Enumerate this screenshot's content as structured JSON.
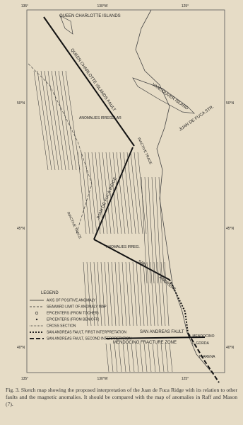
{
  "map": {
    "lon_labels_top": [
      "135°",
      "130°W",
      "125°"
    ],
    "lon_labels_bottom": [
      "135°",
      "130°W",
      "125°"
    ],
    "lat_labels_left": [
      "50°N",
      "45°N",
      "40°N"
    ],
    "lat_labels_right": [
      "50°N",
      "45°N",
      "40°N"
    ],
    "labels": {
      "queen_charlotte_islands": "QUEEN CHARLOTTE ISLANDS",
      "qc_fault": "QUEEN CHARLOTTE ISLANDS FAULT",
      "vancouver": "VANCOUVER ISLAND",
      "juan_de_fuca_str": "JUAN DE FUCA STR.",
      "anomalies_irregular": "ANOMALIES IRREGULAR",
      "inactive_trace_1": "INACTIVE TRACE",
      "inactive_trace_2": "INACTIVE TRACE",
      "ridge": "JUAN DE FUCA RIDGE",
      "anomalies_irreg": "ANOMALIES IRREG.",
      "san_andreas_1": "SAN",
      "san_andreas_2": "ANDREAS",
      "san_andreas_fault": "SAN ANDREAS FAULT",
      "c_mendocino": "C. MENDOCINO",
      "p_gorda": "P. GORDA",
      "mendocino_fz": "MENDOCINO FRACTURE ZONE",
      "p_arena": "P. ARENA"
    }
  },
  "legend": {
    "title": "LEGEND",
    "items": [
      "AXIS OF POSITIVE ANOMALY",
      "SEAWARD LIMIT OF ANOMALY MAP",
      "EPICENTERS (FROM TOCHER)",
      "EPICENTERS (FROM BENIOFF)",
      "CROSS SECTION",
      "SAN ANDREAS FAULT, FIRST INTERPRETATION",
      "SAN ANDREAS FAULT, SECOND INTERPRETATION"
    ]
  },
  "caption": "Fig. 3. Sketch map showing the proposed interpretation of the Juan de Fuca Ridge with its relation to other faults and the magnetic anomalies. It should be compared with the map of anomalies in Raff and Mason (7)."
}
